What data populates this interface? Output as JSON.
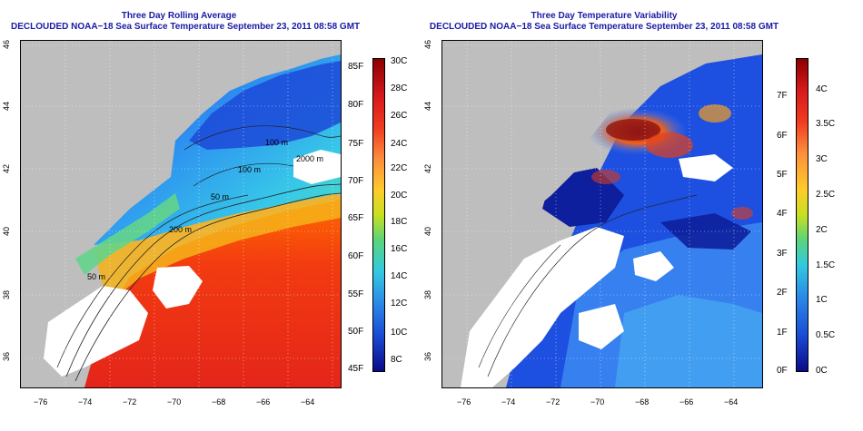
{
  "left": {
    "title_line1": "Three Day Rolling Average",
    "title_line2": "DECLOUDED NOAA−18 Sea Surface Temperature September 23, 2011 08:58 GMT",
    "x_ticks": [
      "−76",
      "−74",
      "−72",
      "−70",
      "−68",
      "−66",
      "−64"
    ],
    "y_ticks": [
      "46",
      "44",
      "42",
      "40",
      "38",
      "36"
    ],
    "contour_labels": [
      "100 m",
      "100 m",
      "2000 m",
      "50 m",
      "200 m",
      "50 m"
    ],
    "colorbar_f": [
      "85F",
      "80F",
      "75F",
      "70F",
      "65F",
      "60F",
      "55F",
      "50F",
      "45F"
    ],
    "colorbar_c": [
      "30C",
      "28C",
      "26C",
      "24C",
      "22C",
      "20C",
      "18C",
      "16C",
      "14C",
      "12C",
      "10C",
      "8C"
    ]
  },
  "right": {
    "title_line1": "Three Day Temperature Variability",
    "title_line2": "DECLOUDED NOAA−18 Sea Surface Temperature September 23, 2011 08:58 GMT",
    "x_ticks": [
      "−76",
      "−74",
      "−72",
      "−70",
      "−68",
      "−66",
      "−64"
    ],
    "y_ticks": [
      "46",
      "44",
      "42",
      "40",
      "38",
      "36"
    ],
    "colorbar_f": [
      "7F",
      "6F",
      "5F",
      "4F",
      "3F",
      "2F",
      "1F",
      "0F"
    ],
    "colorbar_c": [
      "4C",
      "3.5C",
      "3C",
      "2.5C",
      "2C",
      "1.5C",
      "1C",
      "0.5C",
      "0C"
    ]
  },
  "colors": {
    "land": "#bebebe",
    "title": "#1a1aa6",
    "cloud": "#ffffff"
  }
}
